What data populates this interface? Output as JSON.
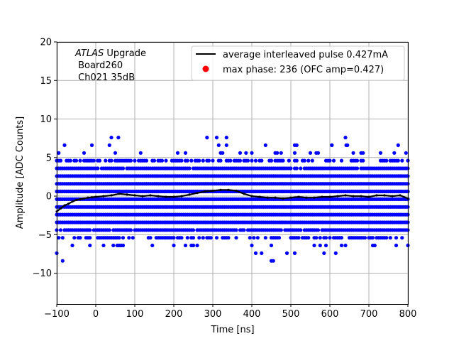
{
  "chart_data": {
    "type": "scatter",
    "title": "",
    "xlabel": "Time [ns]",
    "ylabel": "Amplitude [ADC Counts]",
    "xlim": [
      -100,
      800
    ],
    "ylim": [
      -14,
      20
    ],
    "xticks": [
      -100,
      0,
      100,
      200,
      300,
      400,
      500,
      600,
      700,
      800
    ],
    "yticks": [
      -10,
      -5,
      0,
      5,
      10,
      15,
      20
    ],
    "grid": true,
    "legend_position": "top-right",
    "annotation": {
      "line1_italic": "ATLAS",
      "line1_rest": " Upgrade",
      "line2": " Board260",
      "line3": " Ch021 35dB"
    },
    "colors": {
      "samples": "#0000ff",
      "average": "#000000",
      "max_phase": "#ff0000",
      "grid": "#b0b0b0"
    },
    "series": [
      {
        "name": "average interleaved pulse 0.427mA",
        "kind": "line",
        "x": [
          -100,
          -90,
          -80,
          -70,
          -60,
          -50,
          -40,
          -30,
          -20,
          -10,
          0,
          20,
          40,
          60,
          80,
          100,
          120,
          140,
          160,
          180,
          200,
          220,
          240,
          260,
          280,
          300,
          320,
          340,
          360,
          380,
          400,
          420,
          440,
          460,
          480,
          500,
          520,
          540,
          560,
          580,
          600,
          620,
          640,
          660,
          680,
          700,
          720,
          740,
          760,
          780,
          800
        ],
        "y": [
          -2.0,
          -1.6,
          -1.2,
          -1.0,
          -0.7,
          -0.5,
          -0.4,
          -0.3,
          -0.2,
          -0.15,
          -0.1,
          0.0,
          0.1,
          0.3,
          0.2,
          0.1,
          0.0,
          0.1,
          0.0,
          -0.1,
          -0.1,
          0.0,
          0.2,
          0.4,
          0.6,
          0.7,
          0.8,
          0.8,
          0.7,
          0.3,
          0.0,
          -0.1,
          -0.2,
          -0.2,
          -0.3,
          -0.2,
          -0.1,
          -0.2,
          -0.2,
          -0.1,
          -0.1,
          0.0,
          0.1,
          0.0,
          0.0,
          -0.1,
          0.1,
          0.1,
          0.0,
          0.1,
          -0.3
        ]
      },
      {
        "name": "max phase: 236 (OFC amp=0.427)",
        "kind": "marker",
        "x": [],
        "y": []
      },
      {
        "name": "",
        "kind": "samples",
        "x_range": [
          -100,
          800
        ],
        "y_levels": [
          -7.4,
          -6.4,
          -5.4,
          -4.4,
          -3.4,
          -2.4,
          -1.4,
          -0.4,
          0.6,
          1.6,
          2.6,
          3.6,
          4.6,
          5.6,
          6.6,
          7.6
        ],
        "level_coverage": [
          0.04,
          0.12,
          0.6,
          0.95,
          1,
          1,
          1,
          1,
          1,
          1,
          1,
          0.95,
          0.6,
          0.14,
          0.04,
          0.015
        ],
        "outliers": [
          [
            -85,
            -8.4
          ],
          [
            450,
            -8.4
          ],
          [
            455,
            -8.4
          ],
          [
            35,
            6.6
          ],
          [
            58,
            7.6
          ],
          [
            285,
            7.6
          ],
          [
            335,
            7.6
          ],
          [
            640,
            7.6
          ],
          [
            642,
            6.6
          ],
          [
            605,
            6.6
          ]
        ]
      }
    ]
  }
}
